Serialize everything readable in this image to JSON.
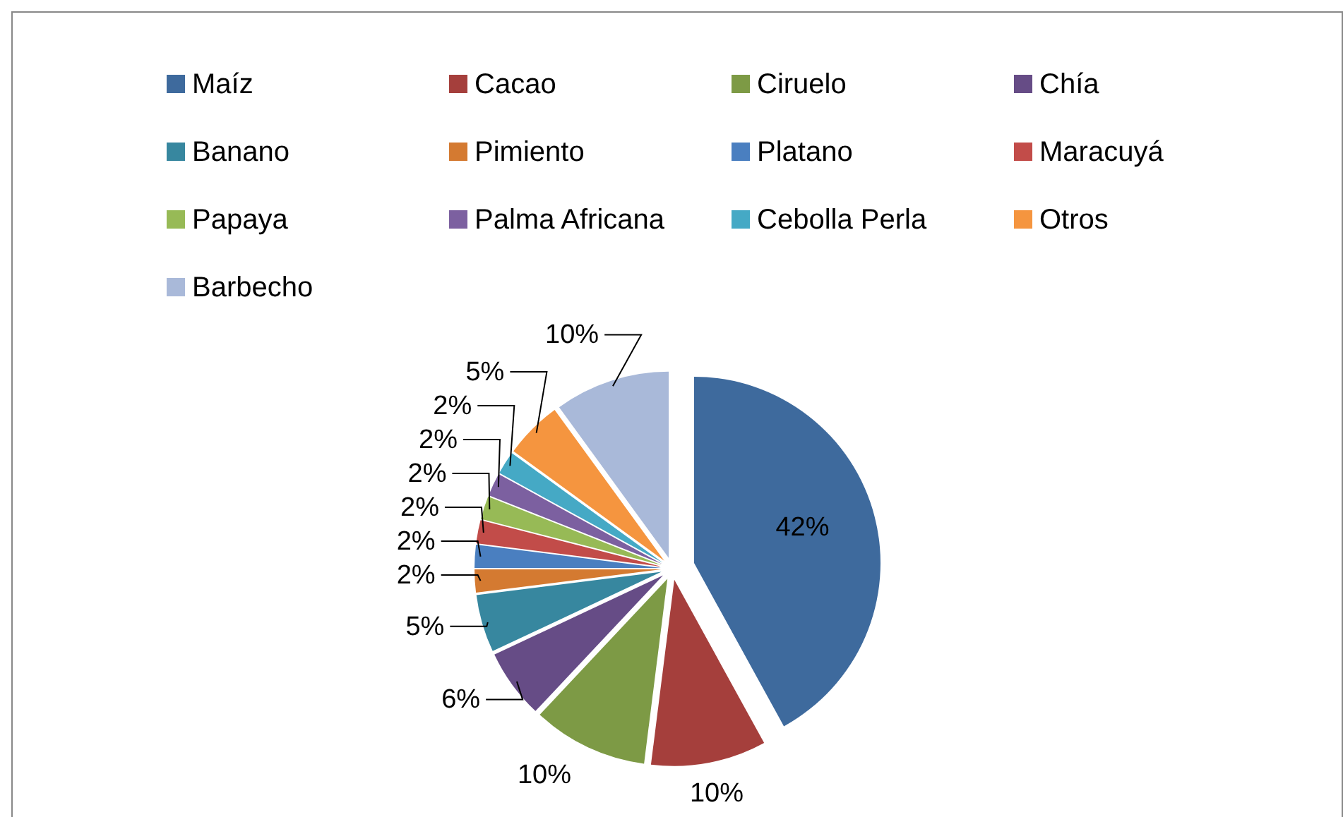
{
  "chart_data": {
    "type": "pie",
    "categories": [
      "Maíz",
      "Cacao",
      "Ciruelo",
      "Chía",
      "Banano",
      "Pimiento",
      "Platano",
      "Maracuyá",
      "Papaya",
      "Palma Africana",
      "Cebolla Perla",
      "Otros",
      "Barbecho"
    ],
    "values": [
      42,
      10,
      10,
      6,
      5,
      2,
      2,
      2,
      2,
      2,
      2,
      5,
      10
    ],
    "value_labels": [
      "42%",
      "10%",
      "10%",
      "6%",
      "5%",
      "2%",
      "2%",
      "2%",
      "2%",
      "2%",
      "2%",
      "5%",
      "10%"
    ],
    "colors": [
      "#3e6a9d",
      "#a53f3c",
      "#7d9a45",
      "#664c86",
      "#37879f",
      "#d47a31",
      "#4a7fc0",
      "#c24c49",
      "#97ba56",
      "#7c60a0",
      "#45a9c5",
      "#f5953f",
      "#a9b9d9"
    ],
    "legend": "top"
  }
}
